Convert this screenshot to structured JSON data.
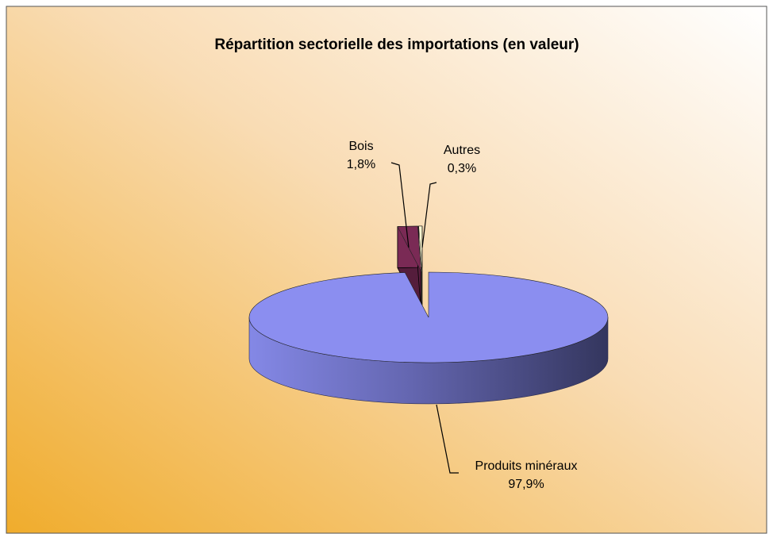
{
  "chart_data": {
    "type": "pie",
    "title": "Répartition sectorielle des importations (en valeur)",
    "categories": [
      "Produits minéraux",
      "Bois",
      "Autres"
    ],
    "values": [
      97.9,
      1.8,
      0.3
    ],
    "value_labels": [
      "97,9%",
      "1,8%",
      "0,3%"
    ],
    "colors": [
      "#8b8ef0",
      "#7a2a55",
      "#fffbd2"
    ]
  }
}
